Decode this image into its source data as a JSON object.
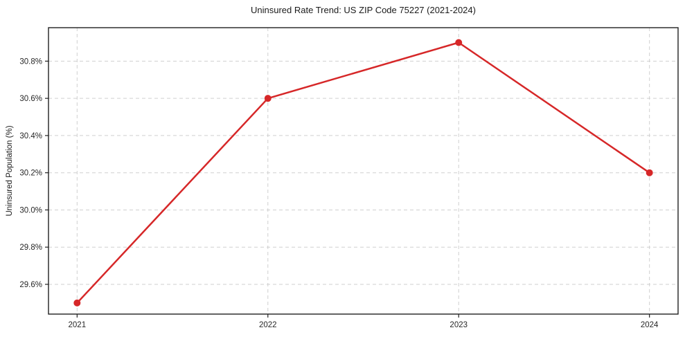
{
  "chart_data": {
    "type": "line",
    "title": "Uninsured Rate Trend: US ZIP Code 75227 (2021-2024)",
    "xlabel": "",
    "ylabel": "Uninsured Population (%)",
    "x": [
      2021,
      2022,
      2023,
      2024
    ],
    "categories": [
      "2021",
      "2022",
      "2023",
      "2024"
    ],
    "series": [
      {
        "name": "Uninsured rate",
        "values": [
          29.5,
          30.6,
          30.9,
          30.2
        ]
      }
    ],
    "xticks": [
      2021,
      2022,
      2023,
      2024
    ],
    "xtick_labels": [
      "2021",
      "2022",
      "2023",
      "2024"
    ],
    "yticks": [
      29.6,
      29.8,
      30.0,
      30.2,
      30.4,
      30.6,
      30.8
    ],
    "ytick_labels": [
      "29.6%",
      "29.8%",
      "30.0%",
      "30.2%",
      "30.4%",
      "30.6%",
      "30.8%"
    ],
    "xlim": [
      2020.85,
      2024.15
    ],
    "ylim": [
      29.44,
      30.98
    ],
    "grid": true,
    "legend": "none",
    "line_color": "#d62728",
    "marker_color": "#d62728",
    "grid_color": "#cfcfcf",
    "spine_color": "#1f1f1f",
    "tick_color": "#1f1f1f",
    "text_color": "#262626",
    "background_color": "#ffffff"
  }
}
